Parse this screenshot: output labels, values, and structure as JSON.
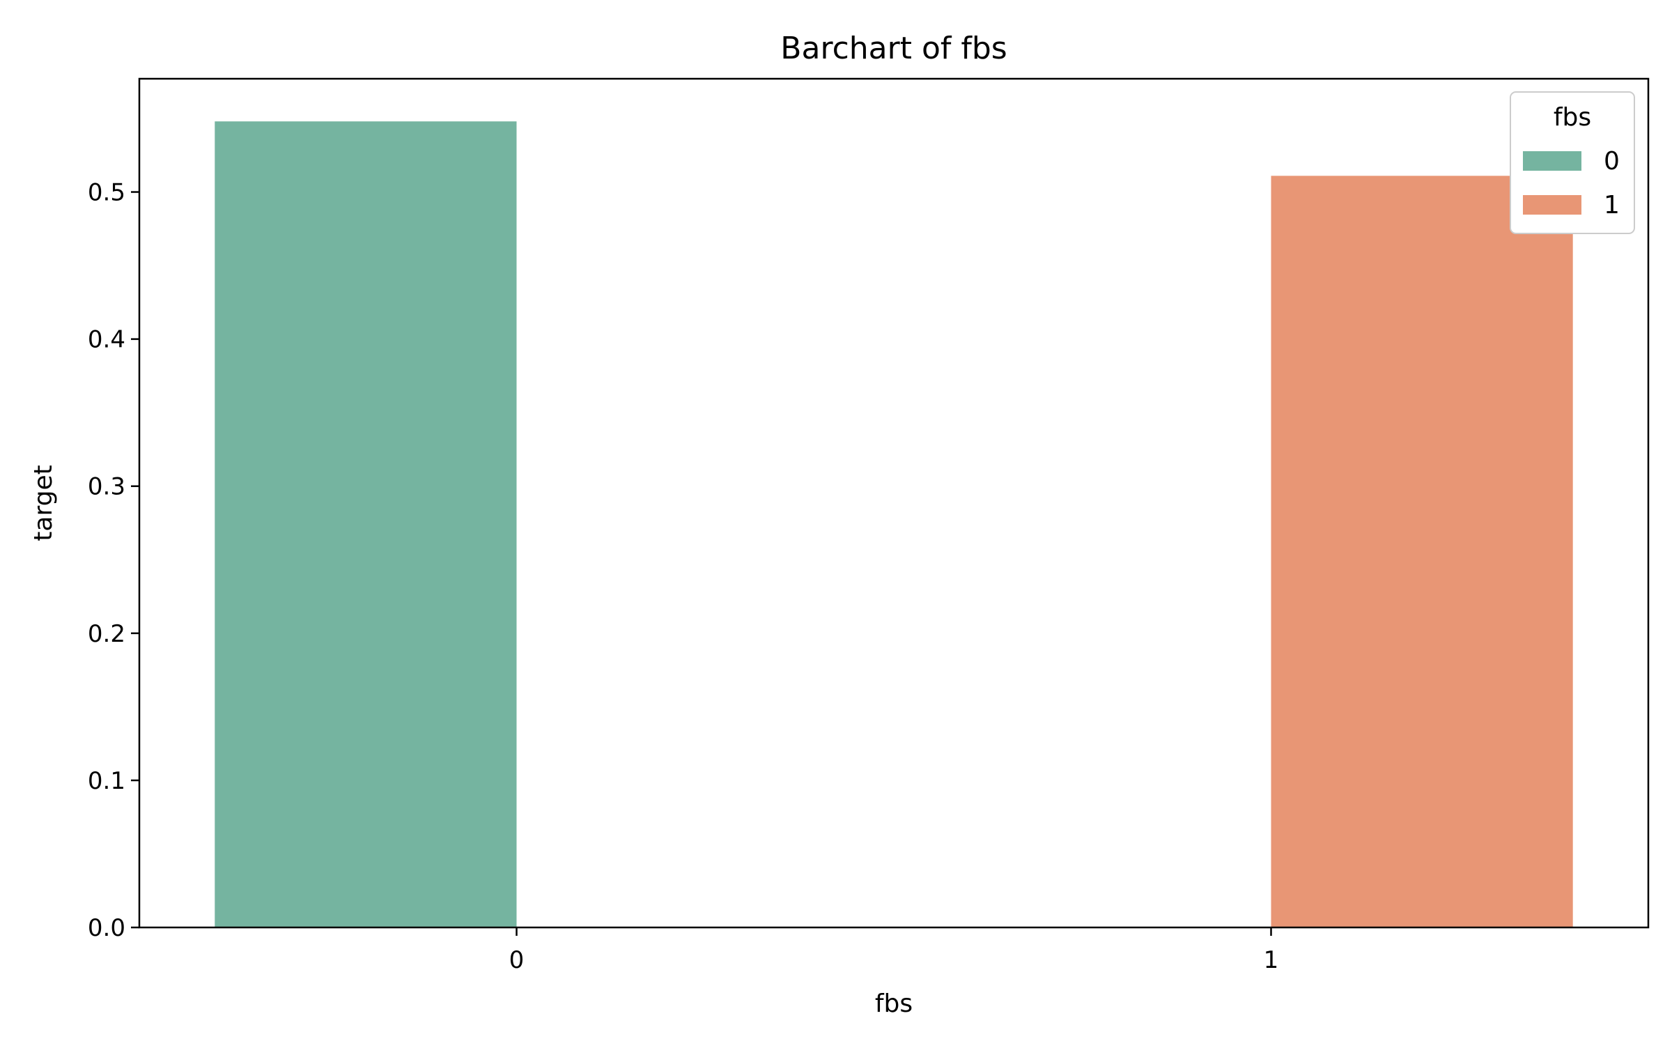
{
  "chart_data": {
    "type": "bar",
    "title": "Barchart of fbs",
    "xlabel": "fbs",
    "ylabel": "target",
    "categories": [
      "0",
      "1"
    ],
    "series": [
      {
        "name": "0",
        "values": [
          0.548,
          null
        ],
        "color": "#75b4a0"
      },
      {
        "name": "1",
        "values": [
          null,
          0.511
        ],
        "color": "#e89675"
      }
    ],
    "ylim": [
      0,
      0.577
    ],
    "yticks": [
      "0.0",
      "0.1",
      "0.2",
      "0.3",
      "0.4",
      "0.5"
    ],
    "legend": {
      "title": "fbs",
      "position": "top-right",
      "entries": [
        "0",
        "1"
      ]
    },
    "grid": false
  }
}
